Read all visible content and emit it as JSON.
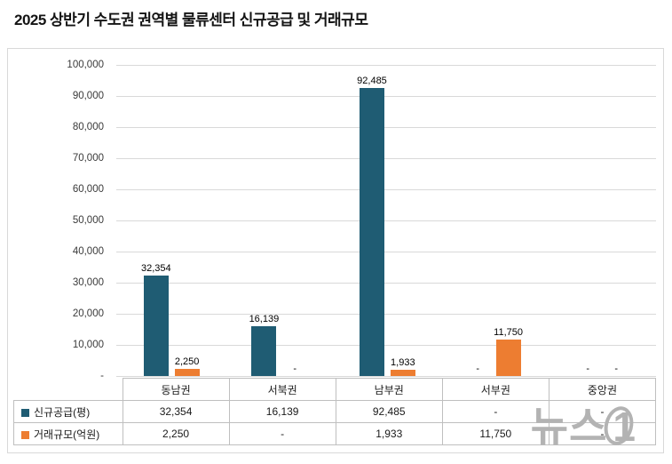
{
  "page": {
    "title": "2025 상반기 수도권 권역별 물류센터 신규공급 및 거래규모"
  },
  "watermark": {
    "news": "뉴스",
    "one": "1"
  },
  "chart_data": {
    "type": "bar",
    "title": "2025 상반기 수도권 권역별 물류센터 신규공급 및 거래규모",
    "categories": [
      "동남권",
      "서북권",
      "남부권",
      "서부권",
      "중앙권"
    ],
    "series": [
      {
        "name": "신규공급(평)",
        "color": "#1F5C73",
        "values": [
          32354,
          16139,
          92485,
          null,
          null
        ]
      },
      {
        "name": "거래규모(억원)",
        "color": "#ED7D31",
        "values": [
          2250,
          null,
          1933,
          11750,
          null
        ]
      }
    ],
    "ylim": [
      0,
      100000
    ],
    "ytick_step": 10000,
    "ytick_labels_top_to_bottom": [
      "100,000",
      "90,000",
      "80,000",
      "70,000",
      "60,000",
      "50,000",
      "40,000",
      "30,000",
      "20,000",
      "10,000",
      "-"
    ],
    "null_label": "-",
    "grid": true,
    "legend_position": "table-left",
    "colors": {
      "grid": "#d9d9d9",
      "table_border": "#bfbfbf"
    }
  }
}
